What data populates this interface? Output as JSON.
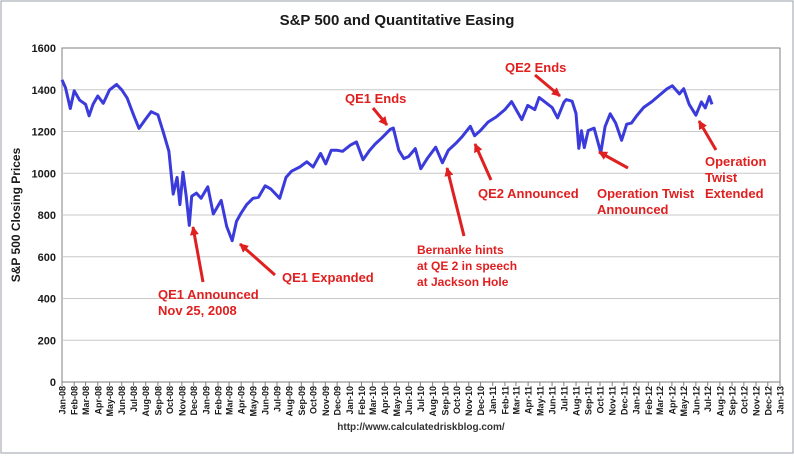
{
  "chart_data": {
    "type": "line",
    "title": "S&P 500 and Quantitative Easing",
    "ylabel": "S&P 500 Closing Prices",
    "xlabel": "",
    "source": "http://www.calculatedriskblog.com/",
    "ylim": [
      0,
      1600
    ],
    "yticks": [
      0,
      200,
      400,
      600,
      800,
      1000,
      1200,
      1400,
      1600
    ],
    "grid": true,
    "x_range_months": [
      "Jan-08",
      "Jan-13"
    ],
    "xtick_labels": [
      "Jan-08",
      "Feb-08",
      "Mar-08",
      "Apr-08",
      "May-08",
      "Jun-08",
      "Jul-08",
      "Aug-08",
      "Sep-08",
      "Oct-08",
      "Nov-08",
      "Dec-08",
      "Jan-09",
      "Feb-09",
      "Mar-09",
      "Apr-09",
      "May-09",
      "Jun-09",
      "Jul-09",
      "Aug-09",
      "Sep-09",
      "Oct-09",
      "Nov-09",
      "Dec-09",
      "Jan-10",
      "Feb-10",
      "Mar-10",
      "Apr-10",
      "May-10",
      "Jun-10",
      "Jul-10",
      "Aug-10",
      "Sep-10",
      "Oct-10",
      "Nov-10",
      "Dec-10",
      "Jan-11",
      "Feb-11",
      "Mar-11",
      "Apr-11",
      "May-11",
      "Jun-11",
      "Jul-11",
      "Aug-11",
      "Sep-11",
      "Oct-11",
      "Nov-11",
      "Dec-11",
      "Jan-12",
      "Feb-12",
      "Mar-12",
      "Apr-12",
      "May-12",
      "Jun-12",
      "Jul-12",
      "Aug-12",
      "Sep-12",
      "Oct-12",
      "Nov-12",
      "Dec-12",
      "Jan-13"
    ],
    "series": [
      {
        "color": "#3b3bdc",
        "points": [
          [
            "2008-01-01",
            1447
          ],
          [
            "2008-01-10",
            1410
          ],
          [
            "2008-01-22",
            1310
          ],
          [
            "2008-02-01",
            1395
          ],
          [
            "2008-02-15",
            1350
          ],
          [
            "2008-03-01",
            1330
          ],
          [
            "2008-03-10",
            1275
          ],
          [
            "2008-03-20",
            1330
          ],
          [
            "2008-04-01",
            1370
          ],
          [
            "2008-04-15",
            1335
          ],
          [
            "2008-05-01",
            1400
          ],
          [
            "2008-05-19",
            1425
          ],
          [
            "2008-06-01",
            1400
          ],
          [
            "2008-06-15",
            1360
          ],
          [
            "2008-07-01",
            1280
          ],
          [
            "2008-07-15",
            1215
          ],
          [
            "2008-08-01",
            1260
          ],
          [
            "2008-08-15",
            1295
          ],
          [
            "2008-09-01",
            1280
          ],
          [
            "2008-09-15",
            1195
          ],
          [
            "2008-09-29",
            1105
          ],
          [
            "2008-10-10",
            900
          ],
          [
            "2008-10-20",
            980
          ],
          [
            "2008-10-27",
            850
          ],
          [
            "2008-11-04",
            1005
          ],
          [
            "2008-11-12",
            890
          ],
          [
            "2008-11-20",
            750
          ],
          [
            "2008-11-26",
            890
          ],
          [
            "2008-12-08",
            905
          ],
          [
            "2008-12-20",
            880
          ],
          [
            "2009-01-06",
            935
          ],
          [
            "2009-01-20",
            805
          ],
          [
            "2009-02-09",
            870
          ],
          [
            "2009-02-23",
            745
          ],
          [
            "2009-03-09",
            677
          ],
          [
            "2009-03-20",
            770
          ],
          [
            "2009-04-01",
            810
          ],
          [
            "2009-04-15",
            850
          ],
          [
            "2009-05-01",
            880
          ],
          [
            "2009-05-15",
            885
          ],
          [
            "2009-06-01",
            940
          ],
          [
            "2009-06-15",
            925
          ],
          [
            "2009-07-08",
            880
          ],
          [
            "2009-07-24",
            980
          ],
          [
            "2009-08-07",
            1010
          ],
          [
            "2009-08-28",
            1030
          ],
          [
            "2009-09-15",
            1055
          ],
          [
            "2009-10-01",
            1030
          ],
          [
            "2009-10-20",
            1095
          ],
          [
            "2009-11-02",
            1045
          ],
          [
            "2009-11-16",
            1110
          ],
          [
            "2009-12-01",
            1110
          ],
          [
            "2009-12-15",
            1105
          ],
          [
            "2010-01-04",
            1135
          ],
          [
            "2010-01-19",
            1150
          ],
          [
            "2010-02-05",
            1065
          ],
          [
            "2010-02-22",
            1110
          ],
          [
            "2010-03-08",
            1140
          ],
          [
            "2010-03-25",
            1170
          ],
          [
            "2010-04-15",
            1210
          ],
          [
            "2010-04-23",
            1217
          ],
          [
            "2010-05-07",
            1110
          ],
          [
            "2010-05-20",
            1070
          ],
          [
            "2010-06-01",
            1080
          ],
          [
            "2010-06-18",
            1118
          ],
          [
            "2010-07-02",
            1022
          ],
          [
            "2010-07-20",
            1075
          ],
          [
            "2010-08-09",
            1125
          ],
          [
            "2010-08-26",
            1050
          ],
          [
            "2010-09-10",
            1110
          ],
          [
            "2010-09-30",
            1145
          ],
          [
            "2010-10-15",
            1175
          ],
          [
            "2010-11-05",
            1225
          ],
          [
            "2010-11-16",
            1180
          ],
          [
            "2010-12-01",
            1205
          ],
          [
            "2010-12-20",
            1245
          ],
          [
            "2011-01-10",
            1270
          ],
          [
            "2011-02-01",
            1305
          ],
          [
            "2011-02-18",
            1343
          ],
          [
            "2011-03-16",
            1257
          ],
          [
            "2011-03-31",
            1325
          ],
          [
            "2011-04-18",
            1305
          ],
          [
            "2011-04-29",
            1363
          ],
          [
            "2011-05-15",
            1340
          ],
          [
            "2011-06-01",
            1315
          ],
          [
            "2011-06-15",
            1265
          ],
          [
            "2011-07-01",
            1340
          ],
          [
            "2011-07-07",
            1353
          ],
          [
            "2011-07-22",
            1345
          ],
          [
            "2011-08-01",
            1286
          ],
          [
            "2011-08-08",
            1119
          ],
          [
            "2011-08-15",
            1204
          ],
          [
            "2011-08-22",
            1123
          ],
          [
            "2011-09-01",
            1205
          ],
          [
            "2011-09-16",
            1216
          ],
          [
            "2011-10-03",
            1099
          ],
          [
            "2011-10-14",
            1224
          ],
          [
            "2011-10-27",
            1285
          ],
          [
            "2011-11-10",
            1240
          ],
          [
            "2011-11-25",
            1158
          ],
          [
            "2011-12-08",
            1235
          ],
          [
            "2011-12-20",
            1240
          ],
          [
            "2012-01-03",
            1277
          ],
          [
            "2012-01-20",
            1315
          ],
          [
            "2012-02-10",
            1343
          ],
          [
            "2012-03-01",
            1375
          ],
          [
            "2012-03-20",
            1405
          ],
          [
            "2012-04-02",
            1419
          ],
          [
            "2012-04-20",
            1380
          ],
          [
            "2012-05-01",
            1405
          ],
          [
            "2012-05-15",
            1330
          ],
          [
            "2012-06-01",
            1278
          ],
          [
            "2012-06-15",
            1342
          ],
          [
            "2012-06-25",
            1313
          ],
          [
            "2012-07-05",
            1367
          ],
          [
            "2012-07-12",
            1330
          ]
        ]
      }
    ],
    "annotations": [
      {
        "text": "QE1 Announced",
        "text2": "Nov 25, 2008",
        "color": "#e02020"
      },
      {
        "text": "QE1 Expanded",
        "text2": "",
        "color": "#e02020"
      },
      {
        "text": "QE1 Ends",
        "text2": "",
        "color": "#e02020"
      },
      {
        "text": "Bernanke hints",
        "text2": "at QE 2 in speech",
        "text3": "at Jackson Hole",
        "color": "#e02020"
      },
      {
        "text": "QE2 Announced",
        "text2": "",
        "color": "#e02020"
      },
      {
        "text": "QE2 Ends",
        "text2": "",
        "color": "#e02020"
      },
      {
        "text": "Operation Twist",
        "text2": "Announced",
        "color": "#e02020"
      },
      {
        "text": "Operation",
        "text2": "Twist",
        "text3": "Extended",
        "color": "#e02020"
      }
    ]
  }
}
